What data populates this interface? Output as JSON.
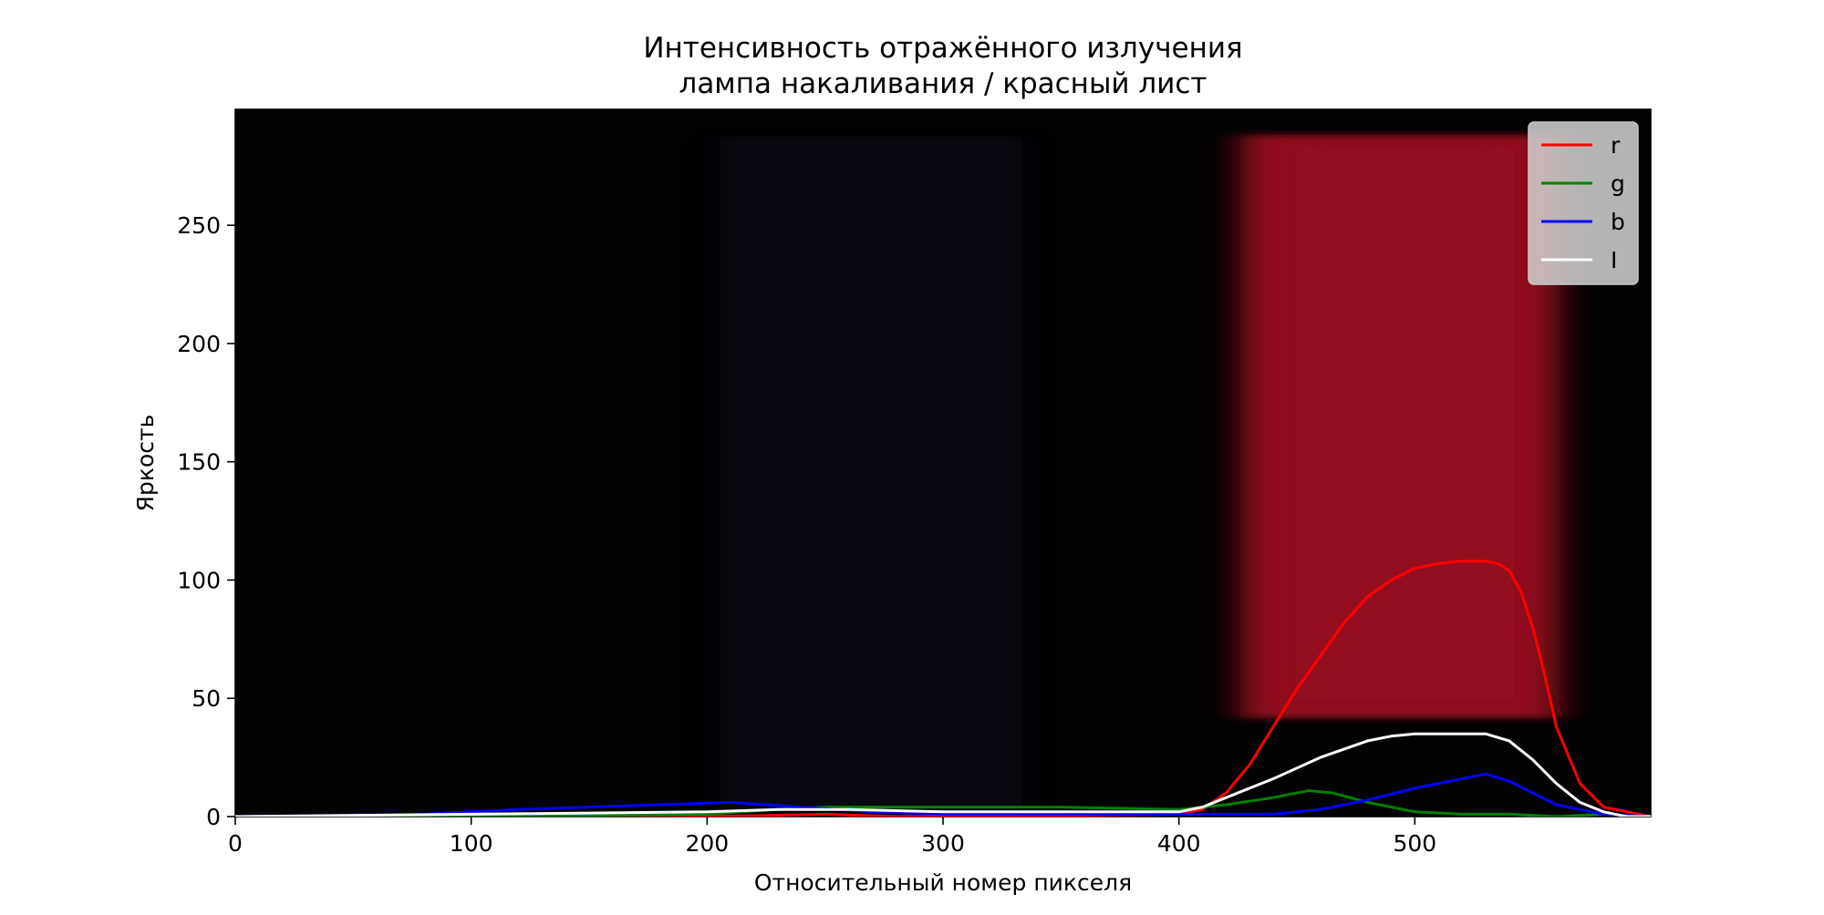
{
  "chart_data": {
    "type": "line",
    "title": "Интенсивность отражённого излучения",
    "subtitle": "лампа накаливания / красный лист",
    "xlabel": "Относительный номер пикселя",
    "ylabel": "Яркость",
    "xlim": [
      0,
      600
    ],
    "ylim": [
      0,
      299
    ],
    "xticks": [
      0,
      100,
      200,
      300,
      400,
      500
    ],
    "yticks": [
      0,
      50,
      100,
      150,
      200,
      250
    ],
    "grid": false,
    "legend_position": "top-right",
    "background": "spectrum photo (dark with red band at x≈420–570, y≈40–290)",
    "series": [
      {
        "name": "r",
        "color": "#ff0000",
        "x": [
          0,
          100,
          200,
          250,
          280,
          300,
          400,
          410,
          420,
          430,
          440,
          450,
          460,
          470,
          480,
          490,
          500,
          510,
          520,
          530,
          535,
          540,
          545,
          550,
          555,
          560,
          570,
          580,
          590,
          600
        ],
        "y": [
          0,
          0,
          0,
          1,
          0,
          0,
          1,
          3,
          10,
          22,
          38,
          54,
          68,
          82,
          93,
          100,
          105,
          107,
          108,
          108,
          107,
          104,
          95,
          80,
          60,
          38,
          14,
          4,
          2,
          0
        ]
      },
      {
        "name": "g",
        "color": "#008000",
        "x": [
          0,
          100,
          200,
          230,
          250,
          300,
          350,
          400,
          420,
          440,
          455,
          465,
          480,
          500,
          520,
          540,
          560,
          580,
          600
        ],
        "y": [
          0,
          0,
          1,
          3,
          4,
          4,
          4,
          3,
          5,
          8,
          11,
          10,
          6,
          2,
          1,
          1,
          0,
          1,
          0
        ]
      },
      {
        "name": "b",
        "color": "#0000ff",
        "x": [
          0,
          80,
          120,
          150,
          180,
          210,
          240,
          270,
          300,
          400,
          440,
          460,
          480,
          500,
          520,
          530,
          540,
          560,
          580,
          600
        ],
        "y": [
          0,
          1,
          3,
          4,
          5,
          6,
          4,
          2,
          1,
          1,
          1,
          3,
          7,
          12,
          16,
          18,
          15,
          5,
          1,
          0
        ]
      },
      {
        "name": "I",
        "color": "#ffffff",
        "x": [
          0,
          100,
          200,
          230,
          260,
          300,
          400,
          410,
          420,
          440,
          460,
          480,
          490,
          500,
          510,
          530,
          540,
          550,
          560,
          570,
          580,
          590,
          600
        ],
        "y": [
          0,
          1,
          2,
          3,
          3,
          2,
          2,
          4,
          8,
          16,
          25,
          32,
          34,
          35,
          35,
          35,
          32,
          24,
          14,
          6,
          2,
          0,
          0
        ]
      }
    ]
  }
}
